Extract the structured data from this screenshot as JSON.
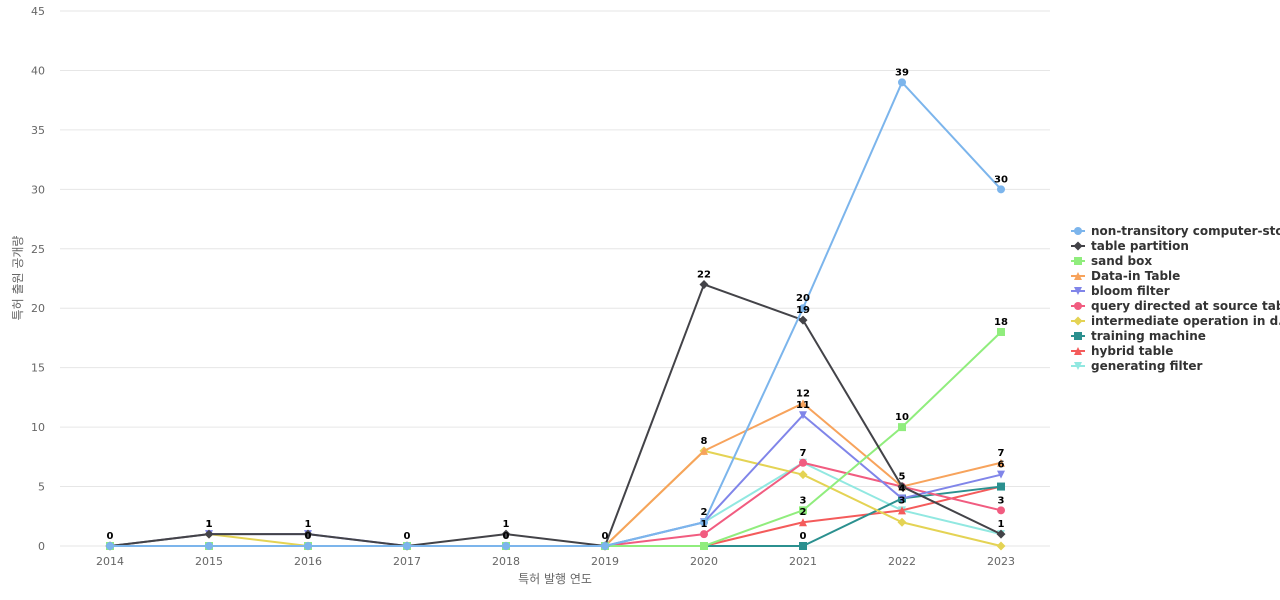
{
  "chart_data": {
    "type": "line",
    "title": "",
    "xlabel": "특허 발행 연도",
    "ylabel": "특허 출원 공개량",
    "ylim": [
      0,
      45
    ],
    "yticks": [
      0,
      5,
      10,
      15,
      20,
      25,
      30,
      35,
      40,
      45
    ],
    "categories": [
      "2014",
      "2015",
      "2016",
      "2017",
      "2018",
      "2019",
      "2020",
      "2021",
      "2022",
      "2023"
    ],
    "grid": true,
    "legend_position": "right",
    "series": [
      {
        "name": "non-transitory computer-sto...",
        "color": "#7cb5ec",
        "marker": "circle",
        "values": [
          0,
          0,
          0,
          0,
          0,
          0,
          2,
          20,
          39,
          30
        ]
      },
      {
        "name": "table partition",
        "color": "#434348",
        "marker": "diamond",
        "values": [
          0,
          1,
          1,
          0,
          1,
          0,
          22,
          19,
          5,
          1
        ]
      },
      {
        "name": "sand box",
        "color": "#90ed7d",
        "marker": "square",
        "values": [
          0,
          0,
          0,
          0,
          0,
          0,
          0,
          3,
          10,
          18
        ]
      },
      {
        "name": "Data-in Table",
        "color": "#f7a35c",
        "marker": "triangle",
        "values": [
          0,
          0,
          0,
          0,
          0,
          0,
          8,
          12,
          5,
          7
        ]
      },
      {
        "name": "bloom filter",
        "color": "#8085e9",
        "marker": "triangle-down",
        "values": [
          0,
          1,
          1,
          0,
          0,
          0,
          2,
          11,
          4,
          6
        ]
      },
      {
        "name": "query directed at source table",
        "color": "#f15c80",
        "marker": "circle",
        "values": [
          0,
          0,
          0,
          0,
          0,
          0,
          1,
          7,
          5,
          3
        ]
      },
      {
        "name": "intermediate operation in d...",
        "color": "#e4d354",
        "marker": "diamond",
        "values": [
          0,
          1,
          0,
          0,
          0,
          0,
          8,
          6,
          2,
          0
        ]
      },
      {
        "name": "training machine",
        "color": "#2b908f",
        "marker": "square",
        "values": [
          0,
          0,
          0,
          0,
          0,
          0,
          0,
          0,
          4,
          5
        ]
      },
      {
        "name": "hybrid table",
        "color": "#f45b5b",
        "marker": "triangle",
        "values": [
          0,
          0,
          0,
          0,
          0,
          0,
          0,
          2,
          3,
          5
        ]
      },
      {
        "name": "generating filter",
        "color": "#91e8e1",
        "marker": "triangle-down",
        "values": [
          0,
          0,
          0,
          0,
          0,
          0,
          2,
          7,
          3,
          1
        ]
      }
    ],
    "data_labels": [
      {
        "series": 1,
        "points": [
          0,
          1,
          2,
          3,
          4,
          5,
          6,
          7,
          8,
          9
        ]
      },
      {
        "series": 6,
        "points": [
          1,
          2,
          4
        ]
      },
      {
        "series": 0,
        "points": [
          6,
          7,
          8,
          9
        ]
      },
      {
        "series": 2,
        "points": [
          7,
          8,
          9
        ]
      },
      {
        "series": 3,
        "points": [
          6,
          7,
          9
        ]
      },
      {
        "series": 4,
        "points": [
          7,
          8,
          9
        ]
      },
      {
        "series": 5,
        "points": [
          6,
          9
        ]
      },
      {
        "series": 9,
        "points": [
          7
        ]
      },
      {
        "series": 8,
        "points": [
          7,
          8
        ]
      },
      {
        "series": 7,
        "points": [
          7
        ]
      }
    ]
  }
}
